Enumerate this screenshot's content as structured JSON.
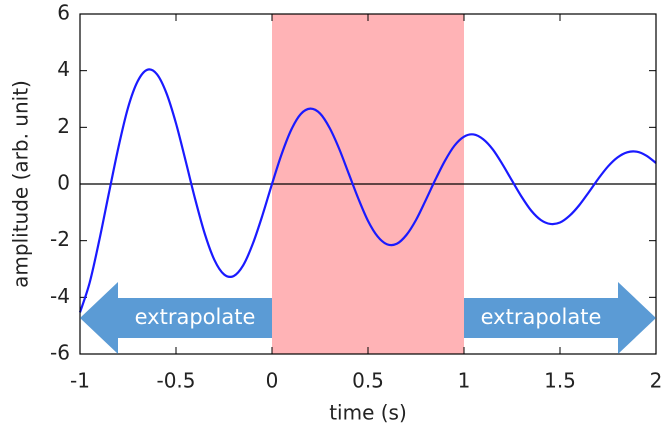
{
  "chart_data": {
    "type": "line",
    "xlabel": "time (s)",
    "ylabel": "amplitude (arb. unit)",
    "x": [
      -1,
      -0.95,
      -0.9,
      -0.85,
      -0.8,
      -0.75,
      -0.7,
      -0.65,
      -0.6,
      -0.55,
      -0.5,
      -0.45,
      -0.4,
      -0.35,
      -0.3,
      -0.25,
      -0.2,
      -0.15,
      -0.1,
      -0.05,
      0,
      0.05,
      0.1,
      0.15,
      0.2,
      0.25,
      0.3,
      0.35,
      0.4,
      0.45,
      0.5,
      0.55,
      0.6,
      0.65,
      0.7,
      0.75,
      0.8,
      0.85,
      0.9,
      0.95,
      1,
      1.05,
      1.1,
      1.15,
      1.2,
      1.25,
      1.3,
      1.35,
      1.4,
      1.45,
      1.5,
      1.55,
      1.6,
      1.65,
      1.7,
      1.75,
      1.8,
      1.85,
      1.9,
      1.95,
      2
    ],
    "series": [
      {
        "color": "#1a1aff",
        "values": [
          -4.53,
          -3.49,
          -2.0,
          -0.34,
          1.29,
          2.69,
          3.62,
          4.03,
          3.88,
          3.21,
          2.14,
          0.82,
          -0.54,
          -1.76,
          -2.68,
          -3.19,
          -3.25,
          -2.87,
          -2.11,
          -1.11,
          0,
          1.05,
          1.91,
          2.47,
          2.66,
          2.49,
          1.98,
          1.24,
          0.36,
          -0.52,
          -1.3,
          -1.85,
          -2.13,
          -2.11,
          -1.8,
          -1.27,
          -0.58,
          0.14,
          0.81,
          1.35,
          1.67,
          1.75,
          1.58,
          1.22,
          0.7,
          0.12,
          -0.45,
          -0.94,
          -1.27,
          -1.41,
          -1.36,
          -1.12,
          -0.75,
          -0.29,
          0.19,
          0.62,
          0.94,
          1.12,
          1.14,
          1.0,
          0.74
        ]
      }
    ],
    "xlim": [
      -1,
      2
    ],
    "xticks": [
      -1,
      -0.5,
      0,
      0.5,
      1,
      1.5,
      2
    ],
    "ylim": [
      -6,
      6
    ],
    "yticks": [
      -6,
      -4,
      -2,
      0,
      2,
      4,
      6
    ],
    "zero_line": true,
    "shaded_region": {
      "x": [
        0,
        1
      ],
      "color": "#ffb3b6"
    },
    "annotations": [
      {
        "text": "extrapolate",
        "x": [
          0,
          -1
        ],
        "color": "#5b9bd5"
      },
      {
        "text": "extrapolate",
        "x": [
          1,
          2
        ],
        "color": "#5b9bd5"
      }
    ]
  }
}
